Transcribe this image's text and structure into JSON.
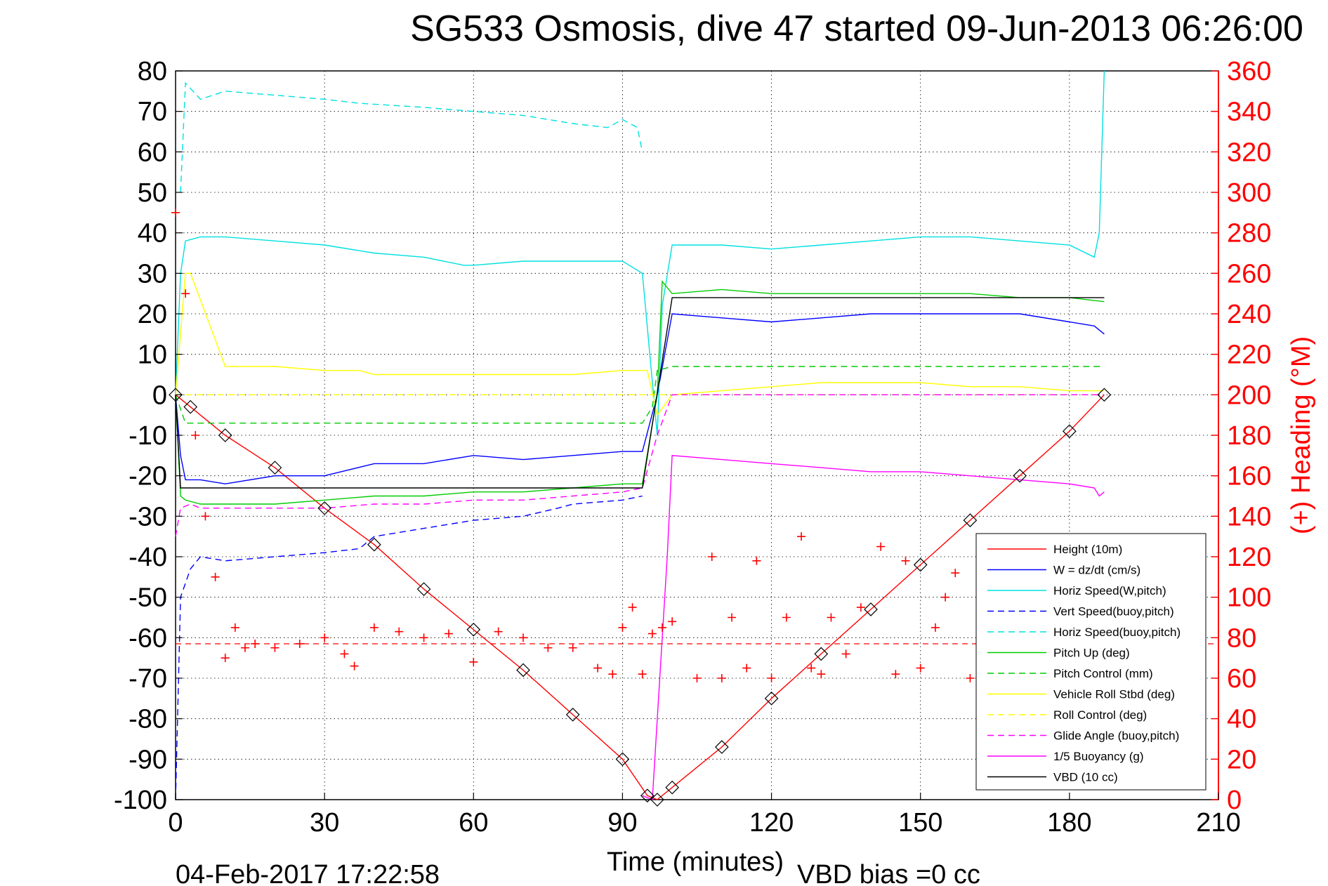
{
  "chart_data": {
    "type": "line",
    "title": "SG533 Osmosis, dive 47 started 09-Jun-2013 06:26:00",
    "xlabel": "Time (minutes)",
    "ylabel_left": "",
    "ylabel_right": "(+) Heading (°M)",
    "footer_left": "04-Feb-2017 17:22:58",
    "footer_right": "VBD bias =0 cc",
    "xlim": [
      0,
      210
    ],
    "ylim_left": [
      -100,
      80
    ],
    "ylim_right": [
      0,
      360
    ],
    "grid": true,
    "legend_position": "bottom-right",
    "x_ticks": [
      0,
      30,
      60,
      90,
      120,
      150,
      180,
      210
    ],
    "x_tick_labels": [
      "0",
      "30",
      "60",
      "90",
      "120",
      "150",
      "180",
      "210"
    ],
    "y_ticks": [
      -100,
      -90,
      -80,
      -70,
      -60,
      -50,
      -40,
      -30,
      -20,
      -10,
      0,
      10,
      20,
      30,
      40,
      50,
      60,
      70,
      80
    ],
    "y_tick_labels": [
      "-100",
      "-90",
      "-80",
      "-70",
      "-60",
      "-50",
      "-40",
      "-30",
      "-20",
      "-10",
      "0",
      "10",
      "20",
      "30",
      "40",
      "50",
      "60",
      "70",
      "80"
    ],
    "y2_ticks": [
      0,
      20,
      40,
      60,
      80,
      100,
      120,
      140,
      160,
      180,
      200,
      220,
      240,
      260,
      280,
      300,
      320,
      340,
      360
    ],
    "y2_tick_labels": [
      "0",
      "20",
      "40",
      "60",
      "80",
      "100",
      "120",
      "140",
      "160",
      "180",
      "200",
      "220",
      "240",
      "260",
      "280",
      "300",
      "320",
      "340",
      "360"
    ],
    "series": [
      {
        "name": "Height (10m)",
        "color": "#ff0000",
        "style": "solid",
        "axis": "left",
        "x": [
          0,
          3,
          10,
          20,
          30,
          40,
          50,
          60,
          70,
          80,
          90,
          95,
          97,
          100,
          110,
          120,
          130,
          140,
          150,
          160,
          170,
          180,
          187
        ],
        "y": [
          0,
          -3,
          -10,
          -18,
          -28,
          -37,
          -48,
          -58,
          -68,
          -79,
          -90,
          -99,
          -100,
          -97,
          -87,
          -75,
          -64,
          -53,
          -42,
          -31,
          -20,
          -9,
          0
        ]
      },
      {
        "name": "W = dz/dt (cm/s)",
        "color": "#0000ff",
        "style": "solid",
        "axis": "left",
        "x": [
          0,
          1,
          2,
          5,
          10,
          20,
          30,
          40,
          50,
          60,
          70,
          80,
          90,
          94,
          97,
          100,
          110,
          120,
          130,
          140,
          150,
          160,
          170,
          180,
          185,
          187
        ],
        "y": [
          0,
          -15,
          -21,
          -21,
          -22,
          -20,
          -20,
          -17,
          -17,
          -15,
          -16,
          -15,
          -14,
          -14,
          0,
          20,
          19,
          18,
          19,
          20,
          20,
          20,
          20,
          18,
          17,
          15
        ]
      },
      {
        "name": "Horiz Speed(W,pitch)",
        "color": "#00e0e0",
        "style": "solid",
        "axis": "left",
        "x": [
          0,
          1,
          2,
          5,
          10,
          20,
          30,
          40,
          50,
          58,
          60,
          70,
          80,
          90,
          94,
          97,
          98,
          100,
          110,
          120,
          130,
          140,
          150,
          160,
          170,
          180,
          185,
          186,
          187
        ],
        "y": [
          0,
          30,
          38,
          39,
          39,
          38,
          37,
          35,
          34,
          32,
          32,
          33,
          33,
          33,
          30,
          -10,
          22,
          37,
          37,
          36,
          37,
          38,
          39,
          39,
          38,
          37,
          34,
          40,
          80
        ]
      },
      {
        "name": "Vert Speed(buoy,pitch)",
        "color": "#0000ff",
        "style": "dashed",
        "axis": "left",
        "x": [
          0,
          1,
          3,
          5,
          10,
          20,
          30,
          37,
          40,
          50,
          60,
          70,
          77,
          80,
          90,
          94
        ],
        "y": [
          -100,
          -50,
          -43,
          -40,
          -41,
          -40,
          -39,
          -38,
          -35,
          -33,
          -31,
          -30,
          -28,
          -27,
          -26,
          -25
        ]
      },
      {
        "name": "Horiz Speed(buoy,pitch)",
        "color": "#00e0e0",
        "style": "dashed",
        "axis": "left",
        "x": [
          1,
          2,
          5,
          10,
          20,
          30,
          37,
          50,
          60,
          70,
          80,
          87,
          90,
          93,
          94
        ],
        "y": [
          50,
          77,
          73,
          75,
          74,
          73,
          72,
          71,
          70,
          69,
          67,
          66,
          68,
          66,
          60
        ]
      },
      {
        "name": "Pitch Up (deg)",
        "color": "#00cc00",
        "style": "solid",
        "axis": "left",
        "x": [
          0,
          1,
          2,
          5,
          10,
          20,
          30,
          40,
          50,
          60,
          70,
          80,
          90,
          94,
          97,
          98,
          100,
          110,
          120,
          130,
          140,
          150,
          160,
          170,
          180,
          187
        ],
        "y": [
          0,
          -25,
          -26,
          -27,
          -27,
          -27,
          -26,
          -25,
          -25,
          -24,
          -24,
          -23,
          -22,
          -22,
          0,
          28,
          25,
          26,
          25,
          25,
          25,
          25,
          25,
          24,
          24,
          23
        ]
      },
      {
        "name": "Pitch Control (mm)",
        "color": "#00cc00",
        "style": "dashed",
        "axis": "left",
        "x": [
          0,
          2,
          94,
          96,
          97,
          100,
          187
        ],
        "y": [
          0,
          -7,
          -7,
          -3,
          6,
          7,
          7
        ]
      },
      {
        "name": "Vehicle Roll Stbd (deg)",
        "color": "#ffff00",
        "style": "solid",
        "axis": "left",
        "x": [
          0,
          2,
          3,
          10,
          20,
          30,
          37,
          40,
          50,
          60,
          70,
          80,
          90,
          95,
          97,
          100,
          110,
          120,
          130,
          140,
          150,
          160,
          170,
          180,
          187
        ],
        "y": [
          0,
          30,
          30,
          7,
          7,
          6,
          6,
          5,
          5,
          5,
          5,
          5,
          6,
          6,
          -5,
          0,
          1,
          2,
          3,
          3,
          3,
          2,
          2,
          1,
          1
        ]
      },
      {
        "name": "Roll Control (deg)",
        "color": "#ffff00",
        "style": "dashed",
        "axis": "left",
        "x": [
          0,
          187
        ],
        "y": [
          0,
          0
        ]
      },
      {
        "name": "Glide Angle (buoy,pitch)",
        "color": "#ff00ff",
        "style": "dashed",
        "axis": "left",
        "x": [
          0,
          1,
          3,
          5,
          10,
          20,
          30,
          40,
          50,
          60,
          70,
          80,
          90,
          94,
          97,
          100,
          187
        ],
        "y": [
          -35,
          -28,
          -27,
          -28,
          -28,
          -28,
          -28,
          -27,
          -27,
          -26,
          -26,
          -25,
          -24,
          -23,
          -10,
          0,
          0
        ]
      },
      {
        "name": "1/5 Buoyancy (g)",
        "color": "#ff00ff",
        "style": "solid",
        "axis": "left",
        "x": [
          94,
          96,
          98,
          99,
          100,
          110,
          120,
          130,
          140,
          150,
          160,
          170,
          180,
          185,
          186,
          187
        ],
        "y": [
          -99,
          -100,
          -60,
          -40,
          -15,
          -16,
          -17,
          -18,
          -19,
          -19,
          -20,
          -21,
          -22,
          -23,
          -25,
          -24
        ]
      },
      {
        "name": "VBD (10 cc)",
        "color": "#000000",
        "style": "solid",
        "axis": "left",
        "x": [
          0,
          1,
          94,
          100,
          187
        ],
        "y": [
          0,
          -23,
          -23,
          24,
          24
        ]
      },
      {
        "name": "Heading",
        "color": "#ff0000",
        "style": "markers-plus",
        "axis": "right",
        "x": [
          0,
          2,
          4,
          6,
          8,
          10,
          12,
          14,
          16,
          20,
          25,
          30,
          34,
          36,
          40,
          45,
          50,
          55,
          60,
          65,
          70,
          75,
          80,
          85,
          88,
          90,
          92,
          94,
          96,
          98,
          100,
          105,
          108,
          110,
          112,
          115,
          117,
          120,
          123,
          126,
          128,
          130,
          132,
          135,
          138,
          142,
          145,
          147,
          150,
          153,
          155,
          157,
          160,
          163,
          166,
          170,
          173,
          176,
          180,
          185
        ],
        "y": [
          290,
          250,
          180,
          140,
          110,
          70,
          85,
          75,
          77,
          75,
          77,
          80,
          72,
          66,
          85,
          83,
          80,
          82,
          68,
          83,
          80,
          75,
          75,
          65,
          62,
          85,
          95,
          62,
          82,
          85,
          88,
          60,
          120,
          60,
          90,
          65,
          118,
          60,
          90,
          130,
          65,
          62,
          90,
          72,
          95,
          125,
          62,
          118,
          65,
          85,
          100,
          112,
          60,
          65,
          60,
          50,
          65,
          55,
          60,
          70
        ]
      }
    ],
    "hlines": [
      {
        "y2": 77,
        "color": "#ff0000",
        "style": "dashed"
      }
    ],
    "legend": [
      "Height (10m)",
      "W = dz/dt (cm/s)",
      "Horiz Speed(W,pitch)",
      "Vert Speed(buoy,pitch)",
      "Horiz Speed(buoy,pitch)",
      "Pitch Up (deg)",
      "Pitch Control (mm)",
      "Vehicle Roll Stbd (deg)",
      "Roll Control (deg)",
      "Glide Angle (buoy,pitch)",
      "1/5 Buoyancy (g)",
      "VBD (10 cc)"
    ]
  }
}
